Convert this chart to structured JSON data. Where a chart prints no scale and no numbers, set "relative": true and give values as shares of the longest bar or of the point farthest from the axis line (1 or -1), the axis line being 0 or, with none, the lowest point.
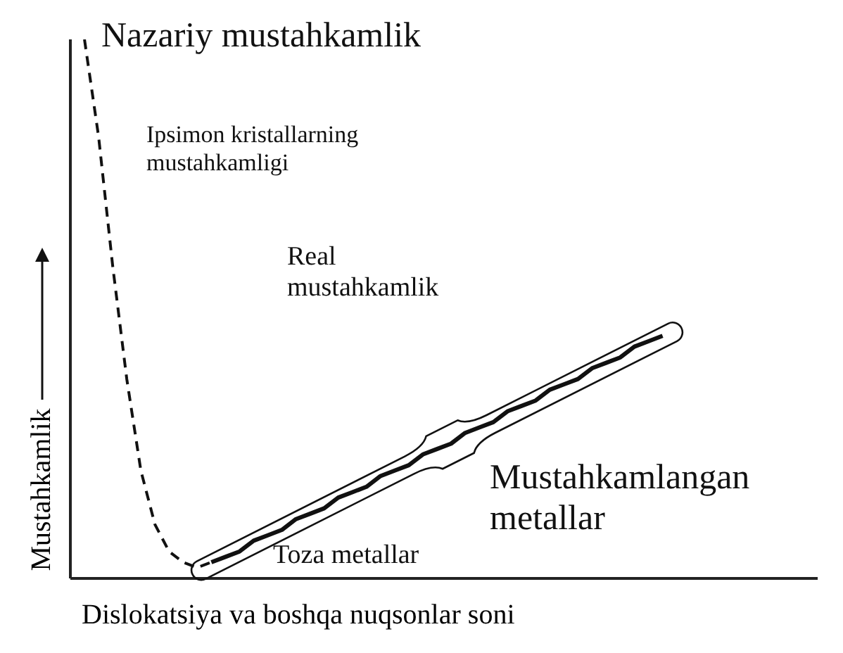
{
  "chart_data": {
    "type": "line",
    "relative": true,
    "xlabel": "Dislokatsiya va boshqa nuqsonlar soni",
    "ylabel": "Mustahkamlik",
    "categories": [
      null,
      null,
      null,
      null,
      null,
      null,
      null,
      null,
      null,
      null,
      null,
      null,
      null,
      null,
      null,
      null,
      null,
      null,
      null,
      null,
      null,
      null,
      null,
      null,
      null,
      null,
      null,
      null,
      null,
      null,
      null,
      null,
      null,
      null,
      null,
      null,
      null,
      null,
      null,
      null,
      null,
      null
    ],
    "series": [
      {
        "color": "#111111",
        "line_style": "dashed",
        "values": [
          1.0,
          0.82,
          0.58,
          0.37,
          0.2,
          0.1,
          0.05,
          0.03,
          0.02,
          0.03,
          null,
          null,
          null,
          null,
          null,
          null,
          null,
          null,
          null,
          null,
          null,
          null,
          null,
          null,
          null,
          null,
          null,
          null,
          null,
          null,
          null,
          null,
          null,
          null,
          null,
          null,
          null,
          null,
          null,
          null,
          null,
          null
        ]
      },
      {
        "color": "#111111",
        "line_style": "solid",
        "values": [
          null,
          null,
          null,
          null,
          null,
          null,
          null,
          null,
          null,
          0.03,
          0.04,
          0.05,
          0.07,
          0.08,
          0.09,
          0.11,
          0.12,
          0.13,
          0.15,
          0.16,
          0.17,
          0.19,
          0.2,
          0.21,
          0.23,
          0.24,
          0.25,
          0.27,
          0.28,
          0.29,
          0.31,
          0.32,
          0.33,
          0.35,
          0.36,
          0.37,
          0.39,
          0.4,
          0.41,
          0.43,
          0.44,
          0.45
        ]
      }
    ],
    "annotations": [
      "Nazariy mustahkamlik",
      "Ipsimon kristallarning mustahkamligi",
      "Real mustahkamlik",
      "Mustahkamlangan metallar",
      "Toza metallar"
    ],
    "legend": false,
    "grid": false
  }
}
